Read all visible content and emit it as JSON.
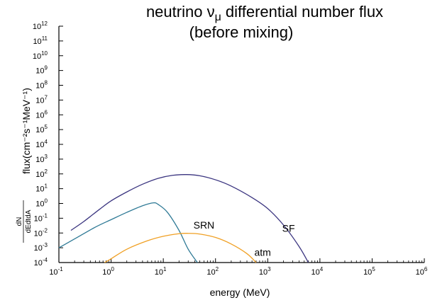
{
  "chart_data": {
    "type": "line",
    "title_line1_prefix": "neutrino ",
    "title_line1_symbol": "ν",
    "title_line1_sub": "μ",
    "title_line1_suffix": " differential number flux",
    "title_line2": "(before mixing)",
    "xlabel": "energy (MeV)",
    "ylabel": "flux(cm⁻²s⁻¹MeV⁻¹)",
    "ylabel_fraction_numerator": "dN",
    "ylabel_fraction_denominator": "dEdtdA",
    "x_scale": "log",
    "y_scale": "log",
    "xlim": [
      0.1,
      1000000
    ],
    "ylim": [
      0.0001,
      1000000000000
    ],
    "x_tick_exponents": [
      -1,
      0,
      1,
      2,
      3,
      4,
      5,
      6
    ],
    "y_tick_exponents": [
      -4,
      -3,
      -2,
      -1,
      0,
      1,
      2,
      3,
      4,
      5,
      6,
      7,
      8,
      9,
      10,
      11,
      12
    ],
    "tick_base": "10",
    "grid": false,
    "series": [
      {
        "name": "SF",
        "color": "#3b3580",
        "x": [
          0.17,
          0.3,
          0.6,
          1,
          2,
          4,
          8,
          15,
          28,
          50,
          100,
          200,
          500,
          1000,
          2000,
          4000,
          6000
        ],
        "y": [
          0.015,
          0.06,
          0.4,
          1.5,
          6,
          20,
          50,
          80,
          90,
          75,
          40,
          15,
          2.5,
          0.45,
          0.035,
          0.0012,
          0.0001
        ]
      },
      {
        "name": "SRN",
        "color": "#2f7a96",
        "x": [
          0.1,
          0.2,
          0.5,
          1,
          2,
          4,
          6.5,
          8,
          12,
          20,
          30,
          45
        ],
        "y": [
          0.001,
          0.004,
          0.025,
          0.08,
          0.25,
          0.7,
          1.1,
          0.85,
          0.25,
          0.015,
          0.0008,
          0.0001
        ]
      },
      {
        "name": "atm",
        "color": "#f0a024",
        "x": [
          0.75,
          1,
          2,
          5,
          10,
          20,
          30,
          50,
          100,
          200,
          400,
          600
        ],
        "y": [
          0.0001,
          0.00018,
          0.0008,
          0.003,
          0.006,
          0.009,
          0.0095,
          0.0085,
          0.005,
          0.0018,
          0.0004,
          0.0001
        ]
      }
    ],
    "annotations": [
      {
        "text": "SRN",
        "x": 60,
        "y": 0.02
      },
      {
        "text": "SF",
        "x": 2500,
        "y": 0.012
      },
      {
        "text": "atm",
        "x": 800,
        "y": 0.00028
      }
    ]
  }
}
